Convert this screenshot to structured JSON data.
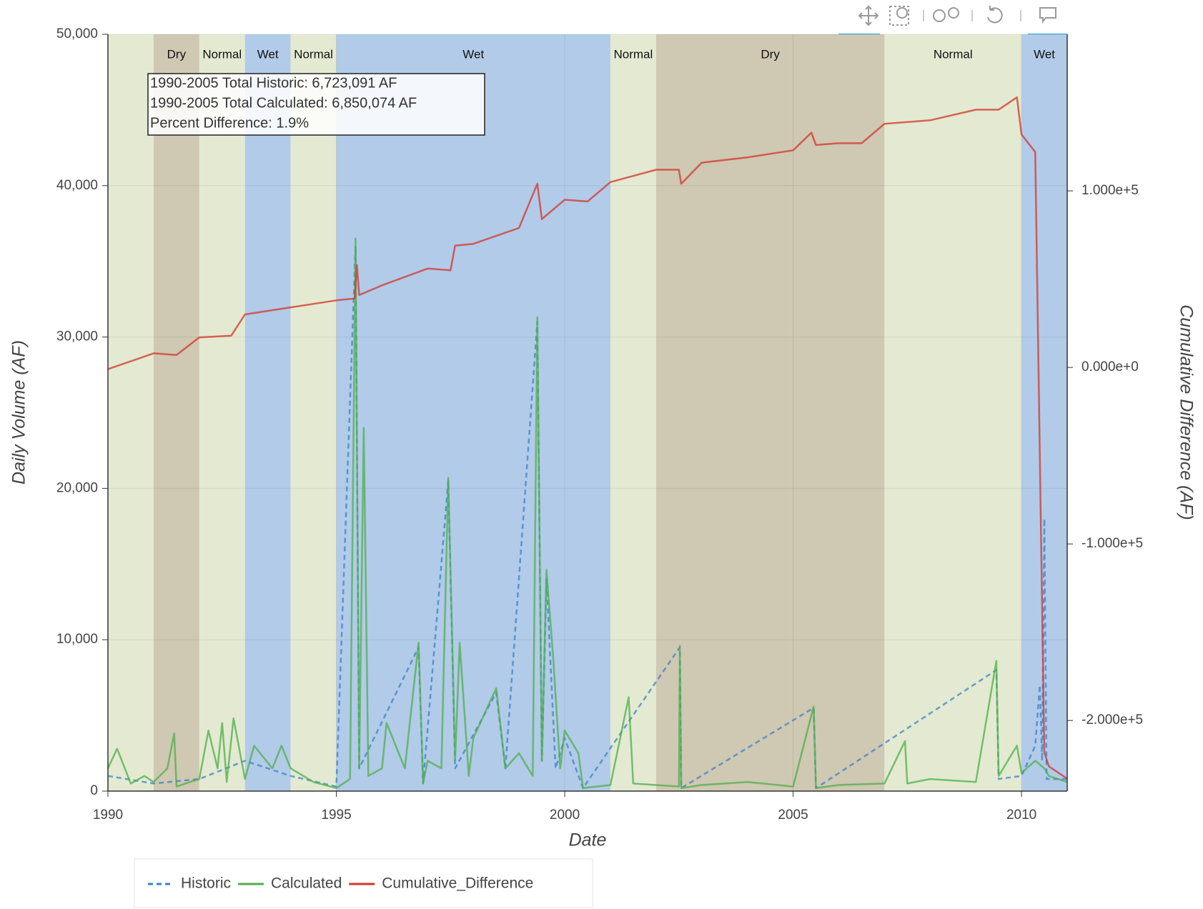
{
  "chart_data": {
    "type": "line",
    "xlabel": "Date",
    "ylabel": "Daily Volume (AF)",
    "y2label": "Cumulative Difference (AF)",
    "xlim": [
      1990,
      2011
    ],
    "xticks": [
      1990,
      1995,
      2000,
      2005,
      2010
    ],
    "ylim": [
      0,
      50000
    ],
    "yticks": [
      0,
      {
        "value": 10000,
        "label": "10,000"
      },
      {
        "value": 20000,
        "label": "20,000"
      },
      {
        "value": 30000,
        "label": "30,000"
      },
      {
        "value": 40000,
        "label": "40,000"
      },
      {
        "value": 50000,
        "label": "50,000"
      }
    ],
    "y2lim": [
      -240000,
      188700
    ],
    "y2ticks": [
      {
        "value": -200000,
        "label": "-2.000e+5"
      },
      {
        "value": -100000,
        "label": "-1.000e+5"
      },
      {
        "value": 0,
        "label": "0.000e+0"
      },
      {
        "value": 100000,
        "label": "1.000e+5"
      }
    ],
    "grid": true,
    "bands": [
      {
        "start": 1990,
        "end": 1991,
        "label": null,
        "color": "#e3ead1"
      },
      {
        "start": 1991,
        "end": 1992,
        "label": "Dry",
        "color": "#cfc8b2"
      },
      {
        "start": 1992,
        "end": 1993,
        "label": "Normal",
        "color": "#e3ead1"
      },
      {
        "start": 1993,
        "end": 1994,
        "label": "Wet",
        "color": "#b2cbe9"
      },
      {
        "start": 1994,
        "end": 1995,
        "label": "Normal",
        "color": "#e3ead1"
      },
      {
        "start": 1995,
        "end": 2001,
        "label": "Wet",
        "color": "#b2cbe9"
      },
      {
        "start": 2001,
        "end": 2002,
        "label": "Normal",
        "color": "#e3ead1"
      },
      {
        "start": 2002,
        "end": 2007,
        "label": "Dry",
        "color": "#cfc8b2"
      },
      {
        "start": 2007,
        "end": 2010,
        "label": "Normal",
        "color": "#e3ead1"
      },
      {
        "start": 2010,
        "end": 2011,
        "label": "Wet",
        "color": "#b2cbe9"
      }
    ],
    "annotation": [
      "1990-2005 Total Historic: 6,723,091 AF",
      "1990-2005 Total Calculated: 6,850,074 AF",
      "Percent Difference: 1.9%"
    ],
    "series": [
      {
        "name": "Historic",
        "color": "#3a82c8",
        "dash": true,
        "x": [
          1990,
          1991,
          1992,
          1993,
          1994,
          1995,
          1995.42,
          1995.5,
          1996.8,
          1996.9,
          1997.45,
          1997.6,
          1998.5,
          1998.7,
          1999.4,
          1999.5,
          1999.6,
          1999.8,
          2000,
          2000.4,
          2002.52,
          2002.55,
          2005.45,
          2005.5,
          2009.45,
          2009.5,
          2010,
          2010.3,
          2010.4,
          2010.45,
          2010.5,
          2010.55,
          2011
        ],
        "values": [
          1000,
          500,
          800,
          2000,
          1000,
          300,
          36000,
          1500,
          9500,
          500,
          20500,
          1500,
          6500,
          1500,
          31000,
          2000,
          14000,
          1500,
          3500,
          200,
          9500,
          200,
          5500,
          200,
          8000,
          800,
          1000,
          3000,
          7000,
          2000,
          18000,
          800,
          800
        ]
      },
      {
        "name": "Calculated",
        "color": "#4fae4a",
        "dash": false,
        "x": [
          1990,
          1990.2,
          1990.5,
          1990.8,
          1991,
          1991.3,
          1991.45,
          1991.5,
          1992,
          1992.2,
          1992.4,
          1992.5,
          1992.6,
          1992.75,
          1993,
          1993.2,
          1993.6,
          1993.8,
          1994,
          1994.5,
          1995,
          1995.3,
          1995.42,
          1995.5,
          1995.6,
          1995.7,
          1996,
          1996.1,
          1996.5,
          1996.8,
          1996.9,
          1997,
          1997.3,
          1997.45,
          1997.6,
          1997.7,
          1997.9,
          1998,
          1998.5,
          1998.7,
          1999,
          1999.3,
          1999.4,
          1999.5,
          1999.6,
          1999.75,
          1999.9,
          2000,
          2000.3,
          2000.4,
          2001,
          2001.4,
          2001.5,
          2002,
          2002.5,
          2002.52,
          2002.55,
          2003,
          2004,
          2005,
          2005.45,
          2005.5,
          2006,
          2007,
          2007.45,
          2007.5,
          2008,
          2009,
          2009.45,
          2009.5,
          2009.9,
          2010,
          2010.3,
          2010.5,
          2010.6,
          2011
        ],
        "values": [
          1500,
          2800,
          500,
          1000,
          600,
          1500,
          3800,
          300,
          800,
          4000,
          1500,
          4500,
          600,
          4800,
          800,
          3000,
          1500,
          3000,
          1500,
          600,
          200,
          800,
          36500,
          1500,
          24000,
          1000,
          1500,
          4500,
          1500,
          9800,
          500,
          2000,
          1500,
          20700,
          2000,
          9800,
          1000,
          3500,
          6800,
          1500,
          2500,
          1000,
          31300,
          2000,
          14600,
          8700,
          1500,
          4000,
          2500,
          200,
          400,
          6200,
          500,
          400,
          300,
          9600,
          200,
          400,
          600,
          300,
          5600,
          200,
          400,
          500,
          3300,
          500,
          800,
          600,
          8600,
          1000,
          3000,
          1200,
          2000,
          1500,
          1000,
          600
        ]
      },
      {
        "name": "Cumulative_Difference",
        "color": "#d2352a",
        "dash": false,
        "axis": "y2",
        "x": [
          1990,
          1991,
          1991.5,
          1992,
          1992.7,
          1993,
          1994,
          1995,
          1995.4,
          1995.45,
          1995.5,
          1996,
          1997,
          1997.5,
          1997.6,
          1998,
          1999,
          1999.4,
          1999.5,
          2000,
          2000.5,
          2001,
          2002,
          2002.5,
          2002.55,
          2003,
          2004,
          2005,
          2005.4,
          2005.5,
          2006,
          2006.5,
          2007,
          2008,
          2009,
          2009.5,
          2009.9,
          2010,
          2010.3,
          2010.5,
          2010.6,
          2011
        ],
        "values": [
          -1000,
          8000,
          7000,
          17000,
          18000,
          30000,
          34000,
          38000,
          39000,
          58000,
          41000,
          46500,
          56000,
          55000,
          69000,
          70000,
          79000,
          104000,
          84000,
          95000,
          94000,
          105000,
          112000,
          112000,
          104000,
          116000,
          119000,
          123000,
          133000,
          126000,
          127000,
          127000,
          138000,
          140000,
          146000,
          146000,
          153000,
          132000,
          122000,
          -218000,
          -226000,
          -233000
        ]
      }
    ]
  }
}
